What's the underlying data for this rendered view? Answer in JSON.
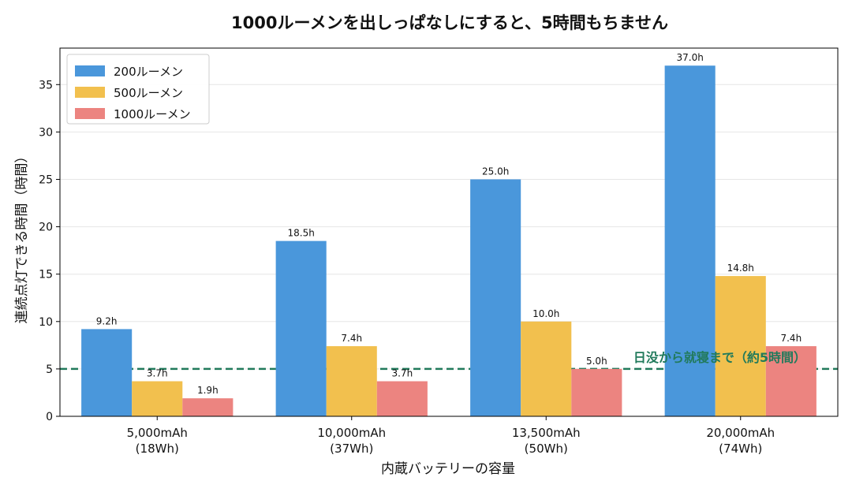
{
  "chart_data": {
    "type": "bar",
    "title": "1000ルーメンを出しっぱなしにすると、5時間もちません",
    "xlabel": "内蔵バッテリーの容量",
    "ylabel": "連続点灯できる時間（時間）",
    "categories": [
      [
        "5,000mAh",
        "(18Wh)"
      ],
      [
        "10,000mAh",
        "(37Wh)"
      ],
      [
        "13,500mAh",
        "(50Wh)"
      ],
      [
        "20,000mAh",
        "(74Wh)"
      ]
    ],
    "series": [
      {
        "name": "200ルーメン",
        "color": "#4a97db",
        "values": [
          9.2,
          18.5,
          25.0,
          37.0
        ],
        "labels": [
          "9.2h",
          "18.5h",
          "25.0h",
          "37.0h"
        ]
      },
      {
        "name": "500ルーメン",
        "color": "#f2c04e",
        "values": [
          3.7,
          7.4,
          10.0,
          14.8
        ],
        "labels": [
          "3.7h",
          "7.4h",
          "10.0h",
          "14.8h"
        ]
      },
      {
        "name": "1000ルーメン",
        "color": "#ec8480",
        "values": [
          1.9,
          3.7,
          5.0,
          7.4
        ],
        "labels": [
          "1.9h",
          "3.7h",
          "5.0h",
          "7.4h"
        ]
      }
    ],
    "ylim": [
      0,
      38.85
    ],
    "yticks": [
      0,
      5,
      10,
      15,
      20,
      25,
      30,
      35
    ],
    "grid": "y",
    "legend": "top-left",
    "reference_line": {
      "y": 5,
      "label": "日没から就寝まで（約5時間）",
      "color": "#217a5b"
    }
  }
}
